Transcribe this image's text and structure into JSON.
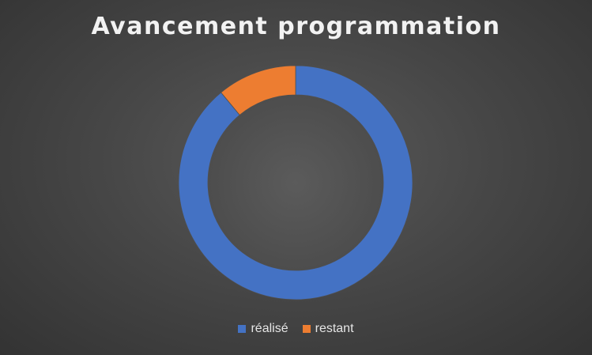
{
  "chart_data": {
    "type": "doughnut",
    "title": "Avancement programmation",
    "categories": [
      "réalisé",
      "restant"
    ],
    "values": [
      89,
      11
    ],
    "colors": [
      "#4472c4",
      "#ed7d31"
    ],
    "legend": "bottom"
  }
}
